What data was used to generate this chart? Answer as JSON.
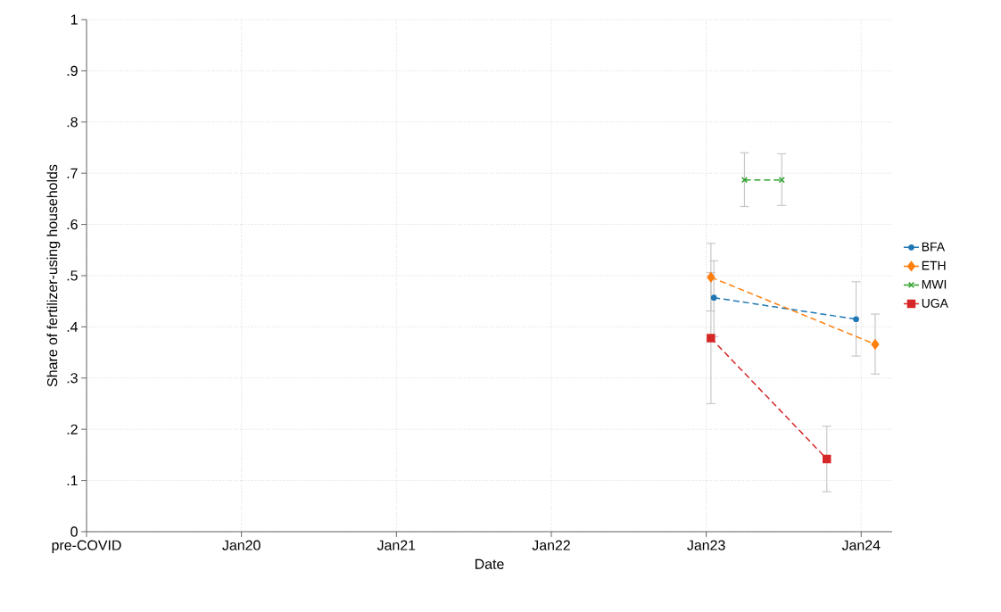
{
  "chart_data": {
    "type": "line",
    "xlabel": "Date",
    "ylabel": "Share of fertilizer-using households",
    "xlim": [
      "2019-01-01",
      "2024-03-14"
    ],
    "ylim": [
      0,
      1
    ],
    "xticks": [
      {
        "value": "2019-01-01",
        "label": "pre-COVID"
      },
      {
        "value": "2020-01-01",
        "label": "Jan20"
      },
      {
        "value": "2021-01-01",
        "label": "Jan21"
      },
      {
        "value": "2022-01-01",
        "label": "Jan22"
      },
      {
        "value": "2023-01-01",
        "label": "Jan23"
      },
      {
        "value": "2024-01-01",
        "label": "Jan24"
      }
    ],
    "yticks": [
      0,
      {
        "value": 0.1,
        "label": ".1"
      },
      {
        "value": 0.2,
        "label": ".2"
      },
      {
        "value": 0.3,
        "label": ".3"
      },
      {
        "value": 0.4,
        "label": ".4"
      },
      {
        "value": 0.5,
        "label": ".5"
      },
      {
        "value": 0.6,
        "label": ".6"
      },
      {
        "value": 0.7,
        "label": ".7"
      },
      {
        "value": 0.8,
        "label": ".8"
      },
      {
        "value": 0.9,
        "label": ".9"
      },
      1
    ],
    "grid": true,
    "legend": "right",
    "line_style": "dashed",
    "series": [
      {
        "name": "BFA",
        "color": "#1f77b4",
        "marker": "circle",
        "x": [
          "2023-01-19",
          "2023-12-20"
        ],
        "values": [
          0.457,
          0.415
        ],
        "errors": [
          [
            0.381,
            0.529
          ],
          [
            0.343,
            0.488
          ]
        ]
      },
      {
        "name": "ETH",
        "color": "#ff7f0e",
        "marker": "diamond",
        "x": [
          "2023-01-12",
          "2024-02-03"
        ],
        "values": [
          0.497,
          0.366
        ],
        "errors": [
          [
            0.431,
            0.563
          ],
          [
            0.308,
            0.425
          ]
        ]
      },
      {
        "name": "MWI",
        "color": "#2ca02c",
        "marker": "cross",
        "x": [
          "2023-04-01",
          "2023-06-28"
        ],
        "values": [
          0.687,
          0.687
        ],
        "errors": [
          [
            0.635,
            0.74
          ],
          [
            0.637,
            0.738
          ]
        ]
      },
      {
        "name": "UGA",
        "color": "#d62728",
        "marker": "square",
        "x": [
          "2023-01-12",
          "2023-10-12"
        ],
        "values": [
          0.378,
          0.142
        ],
        "errors": [
          [
            0.25,
            0.506
          ],
          [
            0.078,
            0.206
          ]
        ]
      }
    ]
  }
}
